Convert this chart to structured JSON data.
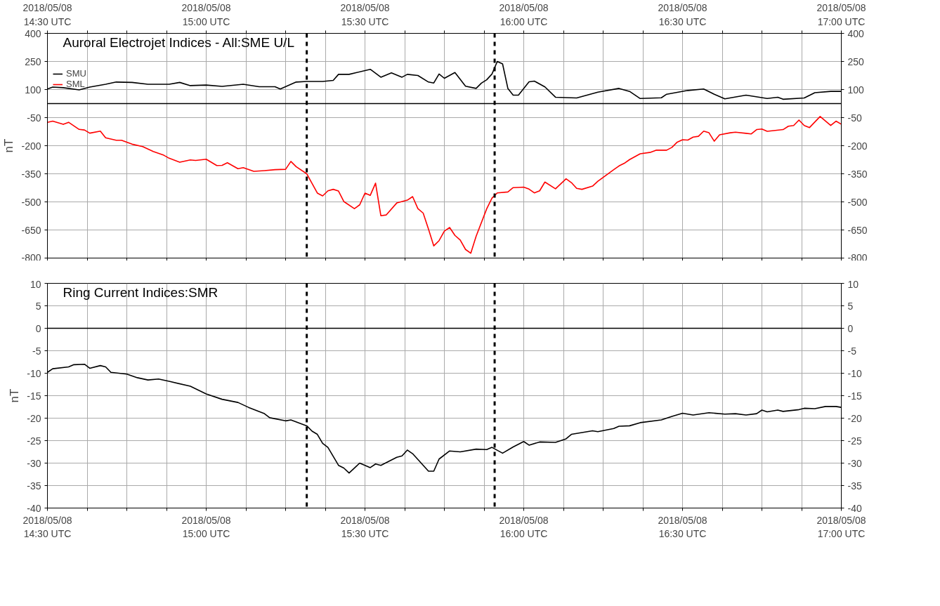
{
  "chart_data": [
    {
      "type": "line",
      "title": "Auroral Electrojet Indices - All:SME U/L",
      "ylabel": "nT",
      "legend": "top left",
      "grid": true,
      "marker": "none",
      "line_style": "solid",
      "tick_labels": "y",
      "xlim": [
        "2018-05-08T14:30",
        "2018-05-08T17:00"
      ],
      "xticks": [
        {
          "value": "2018-05-08T14:30",
          "label": null
        },
        {
          "value": "2018-05-08T14:37:30",
          "label": null
        },
        {
          "value": "2018-05-08T14:45",
          "label": null
        },
        {
          "value": "2018-05-08T14:52:30",
          "label": null
        },
        {
          "value": "2018-05-08T15:00",
          "label": null
        },
        {
          "value": "2018-05-08T15:07:30",
          "label": null
        },
        {
          "value": "2018-05-08T15:15",
          "label": null
        },
        {
          "value": "2018-05-08T15:22:30",
          "label": null
        },
        {
          "value": "2018-05-08T15:30",
          "label": null
        },
        {
          "value": "2018-05-08T15:37:30",
          "label": null
        },
        {
          "value": "2018-05-08T15:45",
          "label": null
        },
        {
          "value": "2018-05-08T15:52:30",
          "label": null
        },
        {
          "value": "2018-05-08T16:00",
          "label": null
        },
        {
          "value": "2018-05-08T16:07:30",
          "label": null
        },
        {
          "value": "2018-05-08T16:15",
          "label": null
        },
        {
          "value": "2018-05-08T16:22:30",
          "label": null
        },
        {
          "value": "2018-05-08T16:30",
          "label": null
        },
        {
          "value": "2018-05-08T16:37:30",
          "label": null
        },
        {
          "value": "2018-05-08T16:45",
          "label": null
        },
        {
          "value": "2018-05-08T16:52:30",
          "label": null
        },
        {
          "value": "2018-05-08T17:00",
          "label": null
        }
      ],
      "x2lim": [
        "2018-05-08T14:30",
        "2018-05-08T17:00"
      ],
      "x2ticks": [
        {
          "value": "2018-05-08T14:30",
          "label": "2018/05/08\n14:30 UTC"
        },
        {
          "value": "2018-05-08T14:37:30",
          "label": null
        },
        {
          "value": "2018-05-08T14:45",
          "label": null
        },
        {
          "value": "2018-05-08T14:52:30",
          "label": null
        },
        {
          "value": "2018-05-08T15:00",
          "label": "2018/05/08\n15:00 UTC"
        },
        {
          "value": "2018-05-08T15:07:30",
          "label": null
        },
        {
          "value": "2018-05-08T15:15",
          "label": null
        },
        {
          "value": "2018-05-08T15:22:30",
          "label": null
        },
        {
          "value": "2018-05-08T15:30",
          "label": "2018/05/08\n15:30 UTC"
        },
        {
          "value": "2018-05-08T15:37:30",
          "label": null
        },
        {
          "value": "2018-05-08T15:45",
          "label": null
        },
        {
          "value": "2018-05-08T15:52:30",
          "label": null
        },
        {
          "value": "2018-05-08T16:00",
          "label": "2018/05/08\n16:00 UTC"
        },
        {
          "value": "2018-05-08T16:07:30",
          "label": null
        },
        {
          "value": "2018-05-08T16:15",
          "label": null
        },
        {
          "value": "2018-05-08T16:22:30",
          "label": null
        },
        {
          "value": "2018-05-08T16:30",
          "label": "2018/05/08\n16:30 UTC"
        },
        {
          "value": "2018-05-08T16:37:30",
          "label": null
        },
        {
          "value": "2018-05-08T16:45",
          "label": null
        },
        {
          "value": "2018-05-08T16:52:30",
          "label": null
        },
        {
          "value": "2018-05-08T17:00",
          "label": "2018/05/08\n17:00 UTC"
        }
      ],
      "ylim": [
        -800,
        400
      ],
      "yticks": [
        400,
        250,
        100,
        -50,
        -200,
        -350,
        -500,
        -650,
        -800
      ],
      "y2lim": [
        -800,
        400
      ],
      "y2ticks": [
        400,
        250,
        100,
        -50,
        -200,
        -350,
        -500,
        -650,
        -800
      ],
      "ref_lines": [
        {
          "axis": "y",
          "value": 25,
          "color": "#000000",
          "line_style": "solid"
        },
        {
          "axis": "x",
          "value": "2018-05-08T15:19",
          "color": "#000000",
          "line_style": "dashed"
        },
        {
          "axis": "x",
          "value": "2018-05-08T15:54:30",
          "color": "#000000",
          "line_style": "dashed"
        }
      ],
      "series": [
        {
          "name": "SMU",
          "color": "#000000",
          "x": [
            "2018-05-08T14:30",
            "2018-05-08T14:31",
            "2018-05-08T14:33",
            "2018-05-08T14:36",
            "2018-05-08T14:38",
            "2018-05-08T14:41",
            "2018-05-08T14:43",
            "2018-05-08T14:46",
            "2018-05-08T14:49",
            "2018-05-08T14:53",
            "2018-05-08T14:55",
            "2018-05-08T14:57",
            "2018-05-08T15:00",
            "2018-05-08T15:03",
            "2018-05-08T15:07",
            "2018-05-08T15:10",
            "2018-05-08T15:13",
            "2018-05-08T15:14",
            "2018-05-08T15:17",
            "2018-05-08T15:19",
            "2018-05-08T15:22",
            "2018-05-08T15:24",
            "2018-05-08T15:25",
            "2018-05-08T15:27",
            "2018-05-08T15:31",
            "2018-05-08T15:33",
            "2018-05-08T15:35",
            "2018-05-08T15:37",
            "2018-05-08T15:38",
            "2018-05-08T15:40",
            "2018-05-08T15:42",
            "2018-05-08T15:43",
            "2018-05-08T15:44",
            "2018-05-08T15:45",
            "2018-05-08T15:47",
            "2018-05-08T15:49",
            "2018-05-08T15:51",
            "2018-05-08T15:52",
            "2018-05-08T15:53",
            "2018-05-08T15:54",
            "2018-05-08T15:55",
            "2018-05-08T15:56",
            "2018-05-08T15:57",
            "2018-05-08T15:58",
            "2018-05-08T15:59",
            "2018-05-08T16:01",
            "2018-05-08T16:02",
            "2018-05-08T16:04",
            "2018-05-08T16:06",
            "2018-05-08T16:07",
            "2018-05-08T16:10",
            "2018-05-08T16:14",
            "2018-05-08T16:18",
            "2018-05-08T16:20",
            "2018-05-08T16:22",
            "2018-05-08T16:26",
            "2018-05-08T16:27",
            "2018-05-08T16:31",
            "2018-05-08T16:34",
            "2018-05-08T16:36",
            "2018-05-08T16:38",
            "2018-05-08T16:42",
            "2018-05-08T16:46",
            "2018-05-08T16:48",
            "2018-05-08T16:49",
            "2018-05-08T16:53",
            "2018-05-08T16:55",
            "2018-05-08T16:58",
            "2018-05-08T17:00"
          ],
          "values": [
            103,
            113,
            110,
            98,
            113,
            128,
            140,
            138,
            128,
            128,
            138,
            121,
            124,
            117,
            128,
            115,
            115,
            103,
            140,
            143,
            143,
            149,
            181,
            181,
            208,
            166,
            189,
            166,
            181,
            175,
            140,
            135,
            183,
            160,
            191,
            118,
            106,
            134,
            152,
            183,
            250,
            237,
            106,
            70,
            70,
            141,
            145,
            114,
            59,
            58,
            55,
            86,
            106,
            90,
            52,
            56,
            75,
            95,
            103,
            75,
            50,
            70,
            52,
            59,
            48,
            55,
            83,
            90,
            90
          ]
        },
        {
          "name": "SML",
          "color": "#ff0000",
          "x": [
            "2018-05-08T14:30",
            "2018-05-08T14:31",
            "2018-05-08T14:33",
            "2018-05-08T14:34",
            "2018-05-08T14:36",
            "2018-05-08T14:37",
            "2018-05-08T14:38",
            "2018-05-08T14:40",
            "2018-05-08T14:41",
            "2018-05-08T14:43",
            "2018-05-08T14:44",
            "2018-05-08T14:46",
            "2018-05-08T14:48",
            "2018-05-08T14:50",
            "2018-05-08T14:52",
            "2018-05-08T14:53",
            "2018-05-08T14:55",
            "2018-05-08T14:57",
            "2018-05-08T14:58",
            "2018-05-08T15:00",
            "2018-05-08T15:02",
            "2018-05-08T15:03",
            "2018-05-08T15:04",
            "2018-05-08T15:06",
            "2018-05-08T15:07",
            "2018-05-08T15:09",
            "2018-05-08T15:11",
            "2018-05-08T15:13",
            "2018-05-08T15:15",
            "2018-05-08T15:16",
            "2018-05-08T15:17",
            "2018-05-08T15:19",
            "2018-05-08T15:21",
            "2018-05-08T15:22",
            "2018-05-08T15:23",
            "2018-05-08T15:24",
            "2018-05-08T15:25",
            "2018-05-08T15:26",
            "2018-05-08T15:28",
            "2018-05-08T15:29",
            "2018-05-08T15:30",
            "2018-05-08T15:31",
            "2018-05-08T15:32",
            "2018-05-08T15:33",
            "2018-05-08T15:34",
            "2018-05-08T15:36",
            "2018-05-08T15:38",
            "2018-05-08T15:39",
            "2018-05-08T15:40",
            "2018-05-08T15:41",
            "2018-05-08T15:42",
            "2018-05-08T15:43",
            "2018-05-08T15:44",
            "2018-05-08T15:45",
            "2018-05-08T15:46",
            "2018-05-08T15:47",
            "2018-05-08T15:48",
            "2018-05-08T15:49",
            "2018-05-08T15:50",
            "2018-05-08T15:51",
            "2018-05-08T15:53",
            "2018-05-08T15:54",
            "2018-05-08T15:55",
            "2018-05-08T15:57",
            "2018-05-08T15:58",
            "2018-05-08T16:00",
            "2018-05-08T16:01",
            "2018-05-08T16:02",
            "2018-05-08T16:03",
            "2018-05-08T16:04",
            "2018-05-08T16:06",
            "2018-05-08T16:08",
            "2018-05-08T16:09",
            "2018-05-08T16:10",
            "2018-05-08T16:11",
            "2018-05-08T16:13",
            "2018-05-08T16:14",
            "2018-05-08T16:17",
            "2018-05-08T16:18",
            "2018-05-08T16:19",
            "2018-05-08T16:20",
            "2018-05-08T16:22",
            "2018-05-08T16:24",
            "2018-05-08T16:25",
            "2018-05-08T16:27",
            "2018-05-08T16:28",
            "2018-05-08T16:29",
            "2018-05-08T16:30",
            "2018-05-08T16:31",
            "2018-05-08T16:32",
            "2018-05-08T16:33",
            "2018-05-08T16:34",
            "2018-05-08T16:35",
            "2018-05-08T16:36",
            "2018-05-08T16:37",
            "2018-05-08T16:39",
            "2018-05-08T16:40",
            "2018-05-08T16:42",
            "2018-05-08T16:43",
            "2018-05-08T16:44",
            "2018-05-08T16:45",
            "2018-05-08T16:46",
            "2018-05-08T16:49",
            "2018-05-08T16:50",
            "2018-05-08T16:51",
            "2018-05-08T16:52",
            "2018-05-08T16:53",
            "2018-05-08T16:54",
            "2018-05-08T16:56",
            "2018-05-08T16:58",
            "2018-05-08T16:59",
            "2018-05-08T17:00"
          ],
          "values": [
            -75,
            -69,
            -86,
            -75,
            -113,
            -116,
            -133,
            -122,
            -158,
            -171,
            -171,
            -192,
            -205,
            -231,
            -251,
            -267,
            -288,
            -276,
            -279,
            -272,
            -306,
            -305,
            -291,
            -323,
            -317,
            -337,
            -333,
            -328,
            -326,
            -284,
            -312,
            -350,
            -453,
            -468,
            -441,
            -433,
            -442,
            -498,
            -536,
            -516,
            -453,
            -465,
            -400,
            -574,
            -570,
            -506,
            -491,
            -472,
            -536,
            -560,
            -645,
            -735,
            -707,
            -656,
            -637,
            -679,
            -704,
            -754,
            -774,
            -684,
            -537,
            -480,
            -452,
            -447,
            -424,
            -421,
            -432,
            -452,
            -441,
            -394,
            -430,
            -377,
            -397,
            -428,
            -433,
            -416,
            -390,
            -328,
            -308,
            -294,
            -274,
            -243,
            -235,
            -224,
            -224,
            -209,
            -181,
            -168,
            -170,
            -154,
            -150,
            -122,
            -131,
            -176,
            -142,
            -131,
            -128,
            -134,
            -137,
            -114,
            -111,
            -123,
            -114,
            -96,
            -92,
            -63,
            -92,
            -103,
            -44,
            -92,
            -69,
            -85
          ]
        }
      ]
    },
    {
      "type": "line",
      "title": "Ring Current Indices:SMR",
      "ylabel": "nT",
      "grid": true,
      "marker": "none",
      "line_style": "solid",
      "xlim": [
        "2018-05-08T14:30",
        "2018-05-08T17:00"
      ],
      "xticks": [
        {
          "value": "2018-05-08T14:30",
          "label": "2018/05/08\n14:30 UTC"
        },
        {
          "value": "2018-05-08T14:37:30",
          "label": null
        },
        {
          "value": "2018-05-08T14:45",
          "label": null
        },
        {
          "value": "2018-05-08T14:52:30",
          "label": null
        },
        {
          "value": "2018-05-08T15:00",
          "label": "2018/05/08\n15:00 UTC"
        },
        {
          "value": "2018-05-08T15:07:30",
          "label": null
        },
        {
          "value": "2018-05-08T15:15",
          "label": null
        },
        {
          "value": "2018-05-08T15:22:30",
          "label": null
        },
        {
          "value": "2018-05-08T15:30",
          "label": "2018/05/08\n15:30 UTC"
        },
        {
          "value": "2018-05-08T15:37:30",
          "label": null
        },
        {
          "value": "2018-05-08T15:45",
          "label": null
        },
        {
          "value": "2018-05-08T15:52:30",
          "label": null
        },
        {
          "value": "2018-05-08T16:00",
          "label": "2018/05/08\n16:00 UTC"
        },
        {
          "value": "2018-05-08T16:07:30",
          "label": null
        },
        {
          "value": "2018-05-08T16:15",
          "label": null
        },
        {
          "value": "2018-05-08T16:22:30",
          "label": null
        },
        {
          "value": "2018-05-08T16:30",
          "label": "2018/05/08\n16:30 UTC"
        },
        {
          "value": "2018-05-08T16:37:30",
          "label": null
        },
        {
          "value": "2018-05-08T16:45",
          "label": null
        },
        {
          "value": "2018-05-08T16:52:30",
          "label": null
        },
        {
          "value": "2018-05-08T17:00",
          "label": "2018/05/08\n17:00 UTC"
        }
      ],
      "ylim": [
        -40,
        10
      ],
      "yticks": [
        10,
        5,
        0,
        -5,
        -10,
        -15,
        -20,
        -25,
        -30,
        -35,
        -40
      ],
      "y2lim": [
        -40,
        10
      ],
      "y2ticks": [
        10,
        5,
        0,
        -5,
        -10,
        -15,
        -20,
        -25,
        -30,
        -35,
        -40
      ],
      "ref_lines": [
        {
          "axis": "y",
          "value": 0,
          "color": "#000000",
          "line_style": "solid"
        },
        {
          "axis": "x",
          "value": "2018-05-08T15:19",
          "color": "#000000",
          "line_style": "dashed"
        },
        {
          "axis": "x",
          "value": "2018-05-08T15:54:30",
          "color": "#000000",
          "line_style": "dashed"
        }
      ],
      "series": [
        {
          "color": "#000000",
          "x": [
            "2018-05-08T14:30",
            "2018-05-08T14:31",
            "2018-05-08T14:34",
            "2018-05-08T14:35",
            "2018-05-08T14:37",
            "2018-05-08T14:38",
            "2018-05-08T14:40",
            "2018-05-08T14:41",
            "2018-05-08T14:42",
            "2018-05-08T14:45",
            "2018-05-08T14:47",
            "2018-05-08T14:49",
            "2018-05-08T14:51",
            "2018-05-08T14:53",
            "2018-05-08T14:57",
            "2018-05-08T15:00",
            "2018-05-08T15:03",
            "2018-05-08T15:06",
            "2018-05-08T15:08",
            "2018-05-08T15:11",
            "2018-05-08T15:12",
            "2018-05-08T15:15",
            "2018-05-08T15:16",
            "2018-05-08T15:19",
            "2018-05-08T15:20",
            "2018-05-08T15:21",
            "2018-05-08T15:22",
            "2018-05-08T15:23",
            "2018-05-08T15:25",
            "2018-05-08T15:26",
            "2018-05-08T15:27",
            "2018-05-08T15:29",
            "2018-05-08T15:31",
            "2018-05-08T15:32",
            "2018-05-08T15:33",
            "2018-05-08T15:36",
            "2018-05-08T15:37",
            "2018-05-08T15:38",
            "2018-05-08T15:39",
            "2018-05-08T15:42",
            "2018-05-08T15:43",
            "2018-05-08T15:44",
            "2018-05-08T15:46",
            "2018-05-08T15:48",
            "2018-05-08T15:51",
            "2018-05-08T15:53",
            "2018-05-08T15:54",
            "2018-05-08T15:56",
            "2018-05-08T15:58",
            "2018-05-08T16:00",
            "2018-05-08T16:01",
            "2018-05-08T16:03",
            "2018-05-08T16:06",
            "2018-05-08T16:08",
            "2018-05-08T16:09",
            "2018-05-08T16:13",
            "2018-05-08T16:14",
            "2018-05-08T16:17",
            "2018-05-08T16:18",
            "2018-05-08T16:20",
            "2018-05-08T16:22",
            "2018-05-08T16:26",
            "2018-05-08T16:28",
            "2018-05-08T16:30",
            "2018-05-08T16:32",
            "2018-05-08T16:35",
            "2018-05-08T16:38",
            "2018-05-08T16:40",
            "2018-05-08T16:42",
            "2018-05-08T16:44",
            "2018-05-08T16:45",
            "2018-05-08T16:46",
            "2018-05-08T16:48",
            "2018-05-08T16:49",
            "2018-05-08T16:52",
            "2018-05-08T16:53",
            "2018-05-08T16:55",
            "2018-05-08T16:57",
            "2018-05-08T16:59",
            "2018-05-08T17:00"
          ],
          "values": [
            -9.8,
            -9,
            -8.6,
            -8.1,
            -8,
            -8.9,
            -8.3,
            -8.6,
            -9.8,
            -10.2,
            -11,
            -11.5,
            -11.3,
            -11.8,
            -12.9,
            -14.6,
            -15.8,
            -16.5,
            -17.6,
            -19,
            -19.9,
            -20.6,
            -20.4,
            -21.7,
            -22.9,
            -23.6,
            -25.6,
            -26.5,
            -30.5,
            -31.1,
            -32.2,
            -30,
            -31,
            -30.2,
            -30.5,
            -28.7,
            -28.4,
            -27.1,
            -27.9,
            -31.8,
            -31.8,
            -29.1,
            -27.3,
            -27.5,
            -26.9,
            -27,
            -26.5,
            -27.8,
            -26.4,
            -25.2,
            -26,
            -25.3,
            -25.4,
            -24.6,
            -23.6,
            -22.8,
            -23,
            -22.3,
            -21.8,
            -21.7,
            -21,
            -20.4,
            -19.6,
            -18.9,
            -19.3,
            -18.8,
            -19.1,
            -19,
            -19.3,
            -19,
            -18.2,
            -18.6,
            -18.2,
            -18.5,
            -18.1,
            -17.8,
            -17.9,
            -17.4,
            -17.4,
            -17.6
          ]
        }
      ]
    }
  ]
}
